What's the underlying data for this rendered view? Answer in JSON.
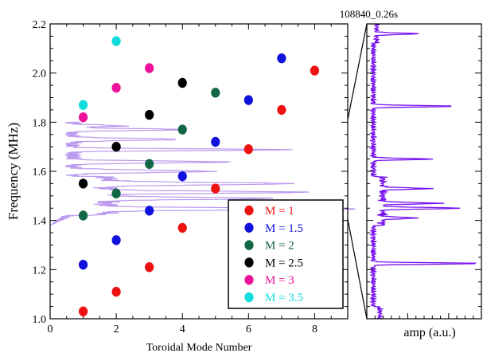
{
  "chart_data": [
    {
      "type": "scatter",
      "title": "108840_0.26s",
      "xlabel": "Toroidal Mode Number",
      "ylabel": "Frequency (MHz)",
      "xlim": [
        0,
        9
      ],
      "ylim": [
        1.0,
        2.2
      ],
      "x_ticks": [
        "0",
        "2",
        "4",
        "6",
        "8"
      ],
      "y_ticks": [
        "1.0",
        "1.2",
        "1.4",
        "1.6",
        "1.8",
        "2.0",
        "2.2"
      ],
      "grid": false,
      "legend_position": "bottom-right",
      "series": [
        {
          "name": "M = 1",
          "color": "#ee1111",
          "points": [
            [
              1,
              1.03
            ],
            [
              2,
              1.11
            ],
            [
              3,
              1.21
            ],
            [
              4,
              1.37
            ],
            [
              5,
              1.53
            ],
            [
              6,
              1.69
            ],
            [
              7,
              1.85
            ],
            [
              8,
              2.01
            ]
          ]
        },
        {
          "name": "M = 1.5",
          "color": "#1111dd",
          "points": [
            [
              1,
              1.22
            ],
            [
              2,
              1.32
            ],
            [
              3,
              1.44
            ],
            [
              4,
              1.58
            ],
            [
              5,
              1.72
            ],
            [
              6,
              1.89
            ],
            [
              7,
              2.06
            ]
          ]
        },
        {
          "name": "M = 2",
          "color": "#116644",
          "points": [
            [
              1,
              1.42
            ],
            [
              2,
              1.51
            ],
            [
              3,
              1.63
            ],
            [
              4,
              1.77
            ],
            [
              5,
              1.92
            ]
          ]
        },
        {
          "name": "M = 2.5",
          "color": "#000000",
          "points": [
            [
              1,
              1.55
            ],
            [
              2,
              1.7
            ],
            [
              3,
              1.83
            ],
            [
              4,
              1.96
            ]
          ]
        },
        {
          "name": "M = 3",
          "color": "#ee1199",
          "points": [
            [
              1,
              1.82
            ],
            [
              2,
              1.94
            ],
            [
              3,
              2.02
            ]
          ]
        },
        {
          "name": "M = 3.5",
          "color": "#11dddd",
          "points": [
            [
              1,
              1.87
            ],
            [
              2,
              2.13
            ]
          ]
        }
      ],
      "spectrum_overlay": {
        "color": "#bb99ee",
        "note_peaks_mhz": [
          1.49,
          1.53,
          1.64,
          1.69,
          1.78
        ]
      }
    },
    {
      "type": "line",
      "xlabel": "amp (a.u.)",
      "ylim": [
        1.0,
        2.2
      ],
      "color": "#7711ee",
      "peaks": [
        {
          "freq": 1.225,
          "amp": 1.0
        },
        {
          "freq": 1.41,
          "amp": 0.32
        },
        {
          "freq": 1.45,
          "amp": 0.75
        },
        {
          "freq": 1.47,
          "amp": 0.55
        },
        {
          "freq": 1.53,
          "amp": 0.45
        },
        {
          "freq": 1.65,
          "amp": 0.55
        },
        {
          "freq": 1.865,
          "amp": 0.78
        },
        {
          "freq": 2.16,
          "amp": 0.4
        }
      ]
    }
  ]
}
